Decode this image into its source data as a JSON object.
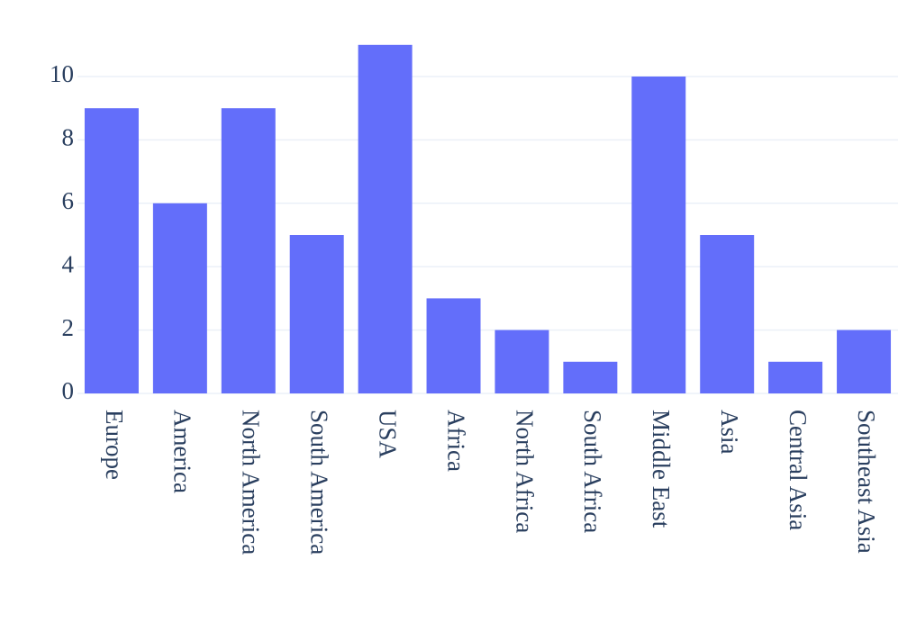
{
  "chart_data": {
    "type": "bar",
    "categories": [
      "Europe",
      "America",
      "North America",
      "South America",
      "USA",
      "Africa",
      "North Africa",
      "South Africa",
      "Middle East",
      "Asia",
      "Central Asia",
      "Southeast Asia"
    ],
    "values": [
      9,
      6,
      9,
      5,
      11,
      3,
      2,
      1,
      10,
      5,
      1,
      2
    ],
    "color": "#636efa",
    "ylim": [
      0,
      11.58
    ],
    "yticks": [
      0,
      2,
      4,
      6,
      8,
      10
    ],
    "grid": true
  }
}
